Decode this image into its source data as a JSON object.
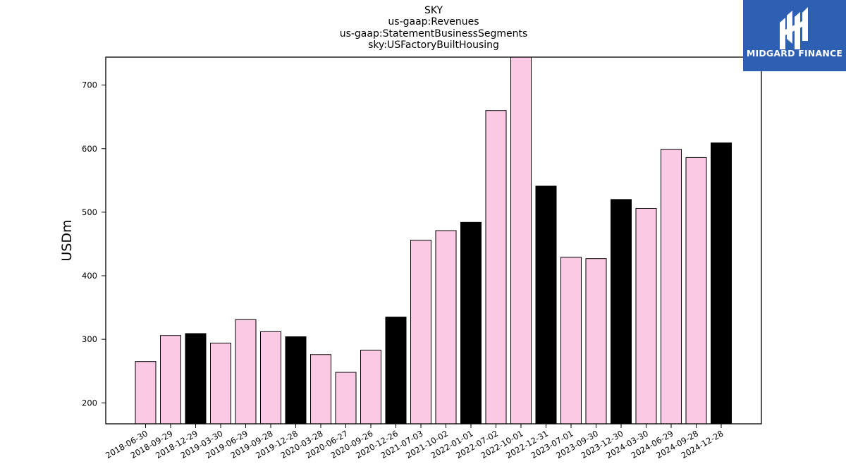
{
  "logo": {
    "text": "MIDGARD FINANCE",
    "background": "#2d5fb3"
  },
  "chart_data": {
    "type": "bar",
    "title": [
      "SKY",
      "us-gaap:Revenues",
      "us-gaap:StatementBusinessSegments",
      "sky:USFactoryBuiltHousing"
    ],
    "xlabel": "",
    "ylabel": "USDm",
    "ylim": [
      167,
      744
    ],
    "yticks": [
      200,
      300,
      400,
      500,
      600,
      700
    ],
    "grid": false,
    "colors": {
      "quarter": "#fbc9e4",
      "fiscal_year_end": "#000000",
      "edge": "#000000"
    },
    "categories": [
      "2018-06-30",
      "2018-09-29",
      "2018-12-29",
      "2019-03-30",
      "2019-06-29",
      "2019-09-28",
      "2019-12-28",
      "2020-03-28",
      "2020-06-27",
      "2020-09-26",
      "2020-12-26",
      "2021-07-03",
      "2021-10-02",
      "2022-01-01",
      "2022-07-02",
      "2022-10-01",
      "2022-12-31",
      "2023-07-01",
      "2023-09-30",
      "2023-12-30",
      "2024-03-30",
      "2024-06-29",
      "2024-09-28",
      "2024-12-28"
    ],
    "values": [
      265,
      306,
      309,
      294,
      331,
      312,
      304,
      276,
      248,
      283,
      335,
      456,
      471,
      484,
      660,
      748,
      541,
      429,
      427,
      520,
      506,
      599,
      586,
      609
    ],
    "highlight": [
      false,
      false,
      true,
      false,
      false,
      false,
      true,
      false,
      false,
      false,
      true,
      false,
      false,
      true,
      false,
      false,
      true,
      false,
      false,
      true,
      false,
      false,
      false,
      true
    ]
  }
}
